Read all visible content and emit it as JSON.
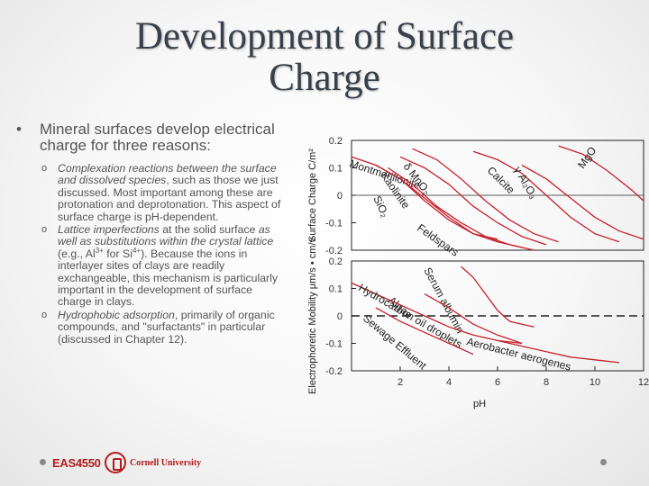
{
  "title": {
    "line1": "Development of Surface",
    "line2": "Charge"
  },
  "bullet": {
    "marker": "•",
    "text": "Mineral surfaces develop electrical charge for three reasons:"
  },
  "sub_marker": "o",
  "subs": [
    {
      "emph": "Complexation reactions between the surface and dissolved species",
      "rest": ", such as those we just discussed. Most important among these are protonation and deprotonation. This aspect of surface charge is pH-dependent."
    },
    {
      "emph1": "Lattice imperfections",
      "mid": " at the solid surface ",
      "emph2": "as well as substitutions within the crystal lattice",
      "mid2": " (e.g., Al",
      "sup1": "3+",
      "mid3": " for Si",
      "sup2": "4+",
      "rest": "). Because the ions in interlayer sites of clays are readily exchangeable, this mechanism is particularly important in the development of surface charge in clays."
    },
    {
      "emph": "Hydrophobic adsorption",
      "rest": ", primarily of organic compounds, and \"surfactants\" in particular (discussed in Chapter 12)."
    }
  ],
  "footer": {
    "course": "EAS4550",
    "university": "Cornell University"
  },
  "chart_data": [
    {
      "type": "line",
      "xlim": [
        0,
        12
      ],
      "ylim": [
        -0.2,
        0.2
      ],
      "yticks": [
        "0.2",
        "0.1",
        "0",
        "-0.1",
        "-0.2"
      ],
      "ylabel": "Surface Charge C/m²",
      "series": [
        {
          "name": "Montmorillonite",
          "x": [
            0,
            1,
            2,
            3,
            4,
            5,
            6
          ],
          "y": [
            0.14,
            0.11,
            0.06,
            -0.02,
            -0.09,
            -0.14,
            -0.16
          ]
        },
        {
          "name": "SiO₂",
          "x": [
            1,
            2,
            3,
            4,
            5,
            6,
            7
          ],
          "y": [
            0.11,
            0.06,
            -0.01,
            -0.08,
            -0.14,
            -0.17,
            -0.19
          ]
        },
        {
          "name": "Feldspars",
          "x": [
            1.5,
            2.5,
            3.5,
            4.5,
            5.5,
            6.5,
            7.5
          ],
          "y": [
            0.1,
            0.04,
            -0.04,
            -0.1,
            -0.15,
            -0.18,
            -0.2
          ]
        },
        {
          "name": "Kaolinite",
          "x": [
            2,
            3,
            4,
            5,
            6,
            7,
            8
          ],
          "y": [
            0.14,
            0.1,
            0.04,
            -0.04,
            -0.1,
            -0.15,
            -0.18
          ]
        },
        {
          "name": "δ MnO₂",
          "x": [
            2.5,
            3.5,
            4.5,
            5.5,
            6.5,
            7.5,
            8.5
          ],
          "y": [
            0.17,
            0.13,
            0.06,
            -0.02,
            -0.09,
            -0.14,
            -0.17
          ]
        },
        {
          "name": "Calcite",
          "x": [
            5,
            6,
            7,
            8,
            9,
            10,
            11
          ],
          "y": [
            0.16,
            0.13,
            0.08,
            0.0,
            -0.08,
            -0.14,
            -0.17
          ]
        },
        {
          "name": "γ Al₂O₃",
          "x": [
            7,
            8,
            9,
            10,
            11,
            12
          ],
          "y": [
            0.11,
            0.06,
            -0.01,
            -0.08,
            -0.13,
            -0.16
          ]
        },
        {
          "name": "MgO",
          "x": [
            8.5,
            9.5,
            10.5,
            11.5,
            12
          ],
          "y": [
            0.18,
            0.15,
            0.09,
            0.02,
            -0.02
          ]
        }
      ]
    },
    {
      "type": "line",
      "xlim": [
        0,
        12
      ],
      "ylim": [
        -0.2,
        0.2
      ],
      "xticks": [
        "2",
        "4",
        "6",
        "8",
        "10",
        "12"
      ],
      "yticks": [
        "0.2",
        "0.1",
        "0",
        "-0.1",
        "-0.2"
      ],
      "ylabel": "Electrophoretic Mobility μm/s • cm/v",
      "xlabel": "pH",
      "series": [
        {
          "name": "Serum albumin",
          "x": [
            4.5,
            5,
            5.5,
            6,
            6.5,
            7,
            7.5
          ],
          "y": [
            0.18,
            0.14,
            0.08,
            0.02,
            -0.02,
            -0.03,
            -0.04
          ]
        },
        {
          "name": "Algae",
          "x": [
            3,
            4,
            5,
            6,
            7
          ],
          "y": [
            0.08,
            0.03,
            -0.03,
            -0.07,
            -0.1
          ]
        },
        {
          "name": "Hydrocarbon oil droplets",
          "x": [
            0,
            1,
            2,
            3,
            4,
            5,
            6,
            7
          ],
          "y": [
            0.12,
            0.08,
            0.04,
            0.0,
            -0.04,
            -0.07,
            -0.09,
            -0.1
          ]
        },
        {
          "name": "Sewage Effluent",
          "x": [
            1,
            2,
            3,
            4,
            5
          ],
          "y": [
            0.03,
            -0.02,
            -0.06,
            -0.1,
            -0.14
          ]
        },
        {
          "name": "Aerobacter aerogenes",
          "x": [
            6,
            7,
            8,
            9,
            10,
            11
          ],
          "y": [
            -0.09,
            -0.11,
            -0.13,
            -0.15,
            -0.16,
            -0.17
          ]
        }
      ]
    }
  ]
}
